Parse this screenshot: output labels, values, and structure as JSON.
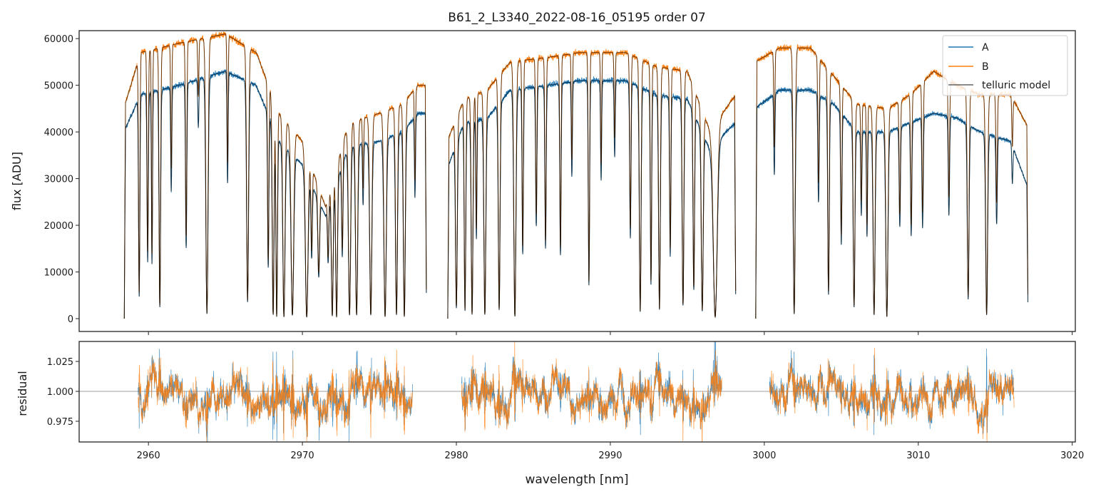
{
  "chart_data": [
    {
      "type": "line",
      "title": "B61_2_L3340_2022-08-16_05195  order 07",
      "xlabel": "wavelength [nm]",
      "ylabel": "flux [ADU]",
      "xlim": [
        2955.5,
        3020.2
      ],
      "ylim": [
        -2750,
        61700
      ],
      "yticks": [
        "0",
        "10000",
        "20000",
        "30000",
        "40000",
        "50000",
        "60000"
      ],
      "ytick_values": [
        0,
        10000,
        20000,
        30000,
        40000,
        50000,
        60000
      ],
      "legend": {
        "placement": "top-right",
        "entries": [
          "A",
          "B",
          "telluric model"
        ]
      },
      "colors": {
        "A": "#1f77b4",
        "B": "#ff7f0e",
        "model": "#000000"
      },
      "segments": [
        {
          "range": [
            2958.43,
            2978.06
          ],
          "continuum_B": [
            [
              2958.4,
              45000
            ],
            [
              2959.5,
              57000
            ],
            [
              2962,
              59000
            ],
            [
              2965,
              61000
            ],
            [
              2967,
              57000
            ],
            [
              2968.5,
              44000
            ],
            [
              2970,
              38000
            ],
            [
              2971.5,
              24000
            ],
            [
              2973,
              42000
            ],
            [
              2975,
              44000
            ],
            [
              2976.5,
              46000
            ],
            [
              2977.5,
              50000
            ],
            [
              2978.06,
              50000
            ]
          ],
          "continuum_A": [
            [
              2958.4,
              40000
            ],
            [
              2959.5,
              48000
            ],
            [
              2962,
              50000
            ],
            [
              2965,
              53000
            ],
            [
              2967,
              50000
            ],
            [
              2968.5,
              38000
            ],
            [
              2970,
              33000
            ],
            [
              2971.5,
              22000
            ],
            [
              2973,
              37000
            ],
            [
              2975,
              38000
            ],
            [
              2976.5,
              40000
            ],
            [
              2977.5,
              44000
            ],
            [
              2978.06,
              44000
            ]
          ]
        },
        {
          "range": [
            2979.44,
            2998.15
          ],
          "continuum_B": [
            [
              2979.4,
              38000
            ],
            [
              2980.5,
              47000
            ],
            [
              2982,
              49000
            ],
            [
              2983.5,
              55000
            ],
            [
              2986,
              56000
            ],
            [
              2988,
              57000
            ],
            [
              2991,
              57000
            ],
            [
              2993,
              54000
            ],
            [
              2995,
              53000
            ],
            [
              2996.5,
              40000
            ],
            [
              2997.5,
              45000
            ],
            [
              2998.15,
              48000
            ]
          ],
          "continuum_A": [
            [
              2979.4,
              32000
            ],
            [
              2980.5,
              42000
            ],
            [
              2982,
              43000
            ],
            [
              2983.5,
              49000
            ],
            [
              2986,
              50000
            ],
            [
              2988,
              51000
            ],
            [
              2991,
              51000
            ],
            [
              2993,
              48000
            ],
            [
              2995,
              47000
            ],
            [
              2996.5,
              36000
            ],
            [
              2997.5,
              40000
            ],
            [
              2998.15,
              42000
            ]
          ]
        },
        {
          "range": [
            2999.44,
            3017.13
          ],
          "continuum_B": [
            [
              2999.4,
              55000
            ],
            [
              3001,
              58000
            ],
            [
              3003,
              58000
            ],
            [
              3004.5,
              52000
            ],
            [
              3006,
              46000
            ],
            [
              3008,
              45000
            ],
            [
              3009.5,
              48000
            ],
            [
              3011,
              53000
            ],
            [
              3012.5,
              50000
            ],
            [
              3014,
              48000
            ],
            [
              3016,
              48000
            ],
            [
              3017.13,
              41000
            ]
          ],
          "continuum_A": [
            [
              2999.4,
              45000
            ],
            [
              3001,
              49000
            ],
            [
              3003,
              49000
            ],
            [
              3004.5,
              46000
            ],
            [
              3006,
              40000
            ],
            [
              3008,
              40000
            ],
            [
              3009.5,
              42000
            ],
            [
              3011,
              44000
            ],
            [
              3012.5,
              43000
            ],
            [
              3014,
              40000
            ],
            [
              3016,
              38000
            ],
            [
              3017.13,
              28000
            ]
          ]
        }
      ],
      "absorption_lines": [
        [
          2959.4,
          0.1,
          0.06
        ],
        [
          2959.95,
          0.25,
          0.06
        ],
        [
          2960.23,
          0.24,
          0.05
        ],
        [
          2960.74,
          0.05,
          0.07
        ],
        [
          2961.48,
          0.55,
          0.05
        ],
        [
          2962.45,
          0.3,
          0.06
        ],
        [
          2963.24,
          0.8,
          0.05
        ],
        [
          2963.8,
          0.02,
          0.1
        ],
        [
          2965.14,
          0.55,
          0.05
        ],
        [
          2966.44,
          0.07,
          0.09
        ],
        [
          2967.78,
          0.25,
          0.06
        ],
        [
          2968.1,
          0.02,
          0.08
        ],
        [
          2968.33,
          0.01,
          0.07
        ],
        [
          2968.8,
          0.01,
          0.1
        ],
        [
          2969.35,
          0.02,
          0.12
        ],
        [
          2970.28,
          0.01,
          0.12
        ],
        [
          2970.6,
          0.45,
          0.06
        ],
        [
          2971.06,
          0.35,
          0.08
        ],
        [
          2971.67,
          0.5,
          0.06
        ],
        [
          2971.94,
          0.02,
          0.08
        ],
        [
          2972.22,
          0.01,
          0.08
        ],
        [
          2972.59,
          0.4,
          0.06
        ],
        [
          2973.06,
          0.02,
          0.1
        ],
        [
          2973.52,
          0.02,
          0.1
        ],
        [
          2973.94,
          0.65,
          0.05
        ],
        [
          2974.44,
          0.02,
          0.1
        ],
        [
          2975.37,
          0.01,
          0.11
        ],
        [
          2976.11,
          0.02,
          0.09
        ],
        [
          2976.62,
          0.01,
          0.09
        ],
        [
          2977.31,
          0.6,
          0.05
        ],
        [
          2980.0,
          0.06,
          0.08
        ],
        [
          2980.56,
          0.04,
          0.07
        ],
        [
          2981.02,
          0.02,
          0.08
        ],
        [
          2981.3,
          0.4,
          0.05
        ],
        [
          2981.85,
          0.02,
          0.09
        ],
        [
          2982.78,
          0.04,
          0.08
        ],
        [
          2983.8,
          0.01,
          0.1
        ],
        [
          2984.31,
          0.28,
          0.06
        ],
        [
          2985.19,
          0.4,
          0.06
        ],
        [
          2985.79,
          0.3,
          0.06
        ],
        [
          2986.76,
          0.27,
          0.06
        ],
        [
          2987.5,
          0.6,
          0.05
        ],
        [
          2988.61,
          0.14,
          0.06
        ],
        [
          2989.4,
          0.58,
          0.05
        ],
        [
          2990.28,
          0.68,
          0.05
        ],
        [
          2991.3,
          0.34,
          0.06
        ],
        [
          2991.94,
          0.03,
          0.08
        ],
        [
          2992.64,
          0.15,
          0.06
        ],
        [
          2993.19,
          0.04,
          0.08
        ],
        [
          2993.89,
          0.28,
          0.06
        ],
        [
          2994.72,
          0.06,
          0.08
        ],
        [
          2995.42,
          0.14,
          0.07
        ],
        [
          2995.97,
          0.04,
          0.09
        ],
        [
          2996.81,
          0.01,
          0.18
        ],
        [
          3000.65,
          0.64,
          0.05
        ],
        [
          3001.94,
          0.02,
          0.09
        ],
        [
          3003.52,
          0.52,
          0.06
        ],
        [
          3004.17,
          0.11,
          0.07
        ],
        [
          3005.0,
          0.36,
          0.06
        ],
        [
          3005.83,
          0.06,
          0.08
        ],
        [
          3006.3,
          0.55,
          0.05
        ],
        [
          3006.67,
          0.44,
          0.05
        ],
        [
          3007.13,
          0.02,
          0.09
        ],
        [
          3007.96,
          0.01,
          0.1
        ],
        [
          3008.8,
          0.48,
          0.06
        ],
        [
          3009.54,
          0.42,
          0.06
        ],
        [
          3010.28,
          0.45,
          0.06
        ],
        [
          3011.99,
          0.51,
          0.06
        ],
        [
          3013.24,
          0.1,
          0.08
        ],
        [
          3014.44,
          0.02,
          0.09
        ],
        [
          3015.09,
          0.52,
          0.06
        ],
        [
          3016.11,
          0.78,
          0.05
        ]
      ]
    },
    {
      "type": "line",
      "xlabel": "wavelength [nm]",
      "ylabel": "residual",
      "xlim": [
        2955.5,
        3020.2
      ],
      "ylim": [
        0.9577,
        1.0417
      ],
      "xticks": [
        "2960",
        "2970",
        "2980",
        "2990",
        "3000",
        "3010",
        "3020"
      ],
      "xtick_values": [
        2960,
        2970,
        2980,
        2990,
        3000,
        3010,
        3020
      ],
      "yticks": [
        "0.975",
        "1.000",
        "1.025"
      ],
      "ytick_values": [
        0.975,
        1.0,
        1.025
      ],
      "reference_line": 1.0,
      "series": [
        "A",
        "B"
      ],
      "noise_scatter": 0.012
    }
  ]
}
